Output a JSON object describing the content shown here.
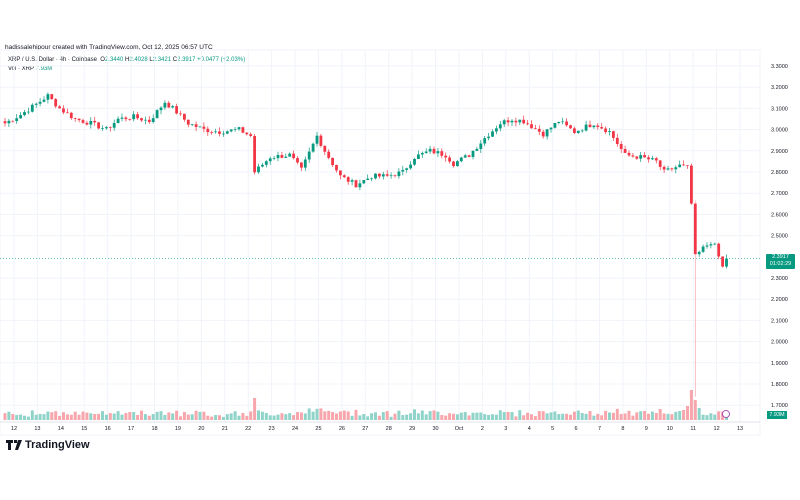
{
  "credit": "hadissalehipour created with TradingView.com, Oct 12, 2025 06:57 UTC",
  "legend": {
    "symbol": "XRP / U.S. Dollar · 4h · Coinbase",
    "o_label": "O",
    "o": "2.3440",
    "h_label": "H",
    "h": "2.4028",
    "l_label": "L",
    "l": "2.3421",
    "c_label": "C",
    "c": "2.3917",
    "change": "+0.0477 (+2.03%)",
    "vol_label": "Vol · XRP",
    "vol": "7.93M"
  },
  "price_badge": {
    "price": "2.3917",
    "countdown": "01:02:29"
  },
  "volume_badge": "7.93M",
  "brand": "TradingView",
  "colors": {
    "up": "#089981",
    "down": "#f23645",
    "up_vol": "#8fd3c9",
    "down_vol": "#f7a6ac"
  },
  "chart_data": {
    "type": "candlestick",
    "title": "XRP / U.S. Dollar · 4h · Coinbase",
    "y_ticks": [
      "3.3000",
      "3.2000",
      "3.1000",
      "3.0000",
      "2.9000",
      "2.8000",
      "2.7000",
      "2.6000",
      "2.5000",
      "2.3000",
      "2.2000",
      "2.1000",
      "2.0000",
      "1.9000",
      "1.8000",
      "1.7000"
    ],
    "ylim": [
      1.7,
      3.3
    ],
    "x_ticks": [
      "12",
      "13",
      "14",
      "15",
      "16",
      "17",
      "18",
      "19",
      "20",
      "21",
      "22",
      "23",
      "24",
      "25",
      "26",
      "27",
      "28",
      "29",
      "30",
      "Oct",
      "2",
      "3",
      "4",
      "5",
      "6",
      "7",
      "8",
      "9",
      "10",
      "11",
      "12",
      "13"
    ],
    "close_path": [
      [
        0,
        3.03
      ],
      [
        4,
        3.07
      ],
      [
        8,
        3.12
      ],
      [
        11,
        3.16
      ],
      [
        14,
        3.1
      ],
      [
        18,
        3.05
      ],
      [
        22,
        3.03
      ],
      [
        26,
        3.0
      ],
      [
        29,
        3.05
      ],
      [
        33,
        3.06
      ],
      [
        37,
        3.04
      ],
      [
        41,
        3.13
      ],
      [
        43,
        3.1
      ],
      [
        47,
        3.03
      ],
      [
        51,
        3.0
      ],
      [
        55,
        2.99
      ],
      [
        60,
        3.0
      ],
      [
        63,
        2.97
      ],
      [
        64,
        2.8
      ],
      [
        68,
        2.87
      ],
      [
        73,
        2.88
      ],
      [
        76,
        2.81
      ],
      [
        80,
        2.97
      ],
      [
        82,
        2.9
      ],
      [
        86,
        2.78
      ],
      [
        90,
        2.74
      ],
      [
        94,
        2.78
      ],
      [
        98,
        2.78
      ],
      [
        102,
        2.8
      ],
      [
        105,
        2.87
      ],
      [
        109,
        2.9
      ],
      [
        113,
        2.88
      ],
      [
        115,
        2.84
      ],
      [
        119,
        2.88
      ],
      [
        123,
        2.96
      ],
      [
        127,
        3.03
      ],
      [
        130,
        3.05
      ],
      [
        133,
        3.04
      ],
      [
        138,
        2.98
      ],
      [
        142,
        3.04
      ],
      [
        146,
        2.99
      ],
      [
        151,
        3.03
      ],
      [
        155,
        2.99
      ],
      [
        159,
        2.88
      ],
      [
        163,
        2.87
      ],
      [
        167,
        2.85
      ],
      [
        169,
        2.8
      ],
      [
        173,
        2.83
      ],
      [
        175,
        2.82
      ],
      [
        176,
        2.65
      ],
      [
        177,
        2.4
      ],
      [
        179,
        2.44
      ],
      [
        181,
        2.47
      ],
      [
        182,
        2.45
      ],
      [
        183,
        2.4
      ],
      [
        184,
        2.35
      ],
      [
        185,
        2.39
      ]
    ],
    "flash_crash_low": 1.74,
    "last_close": 2.3917
  }
}
